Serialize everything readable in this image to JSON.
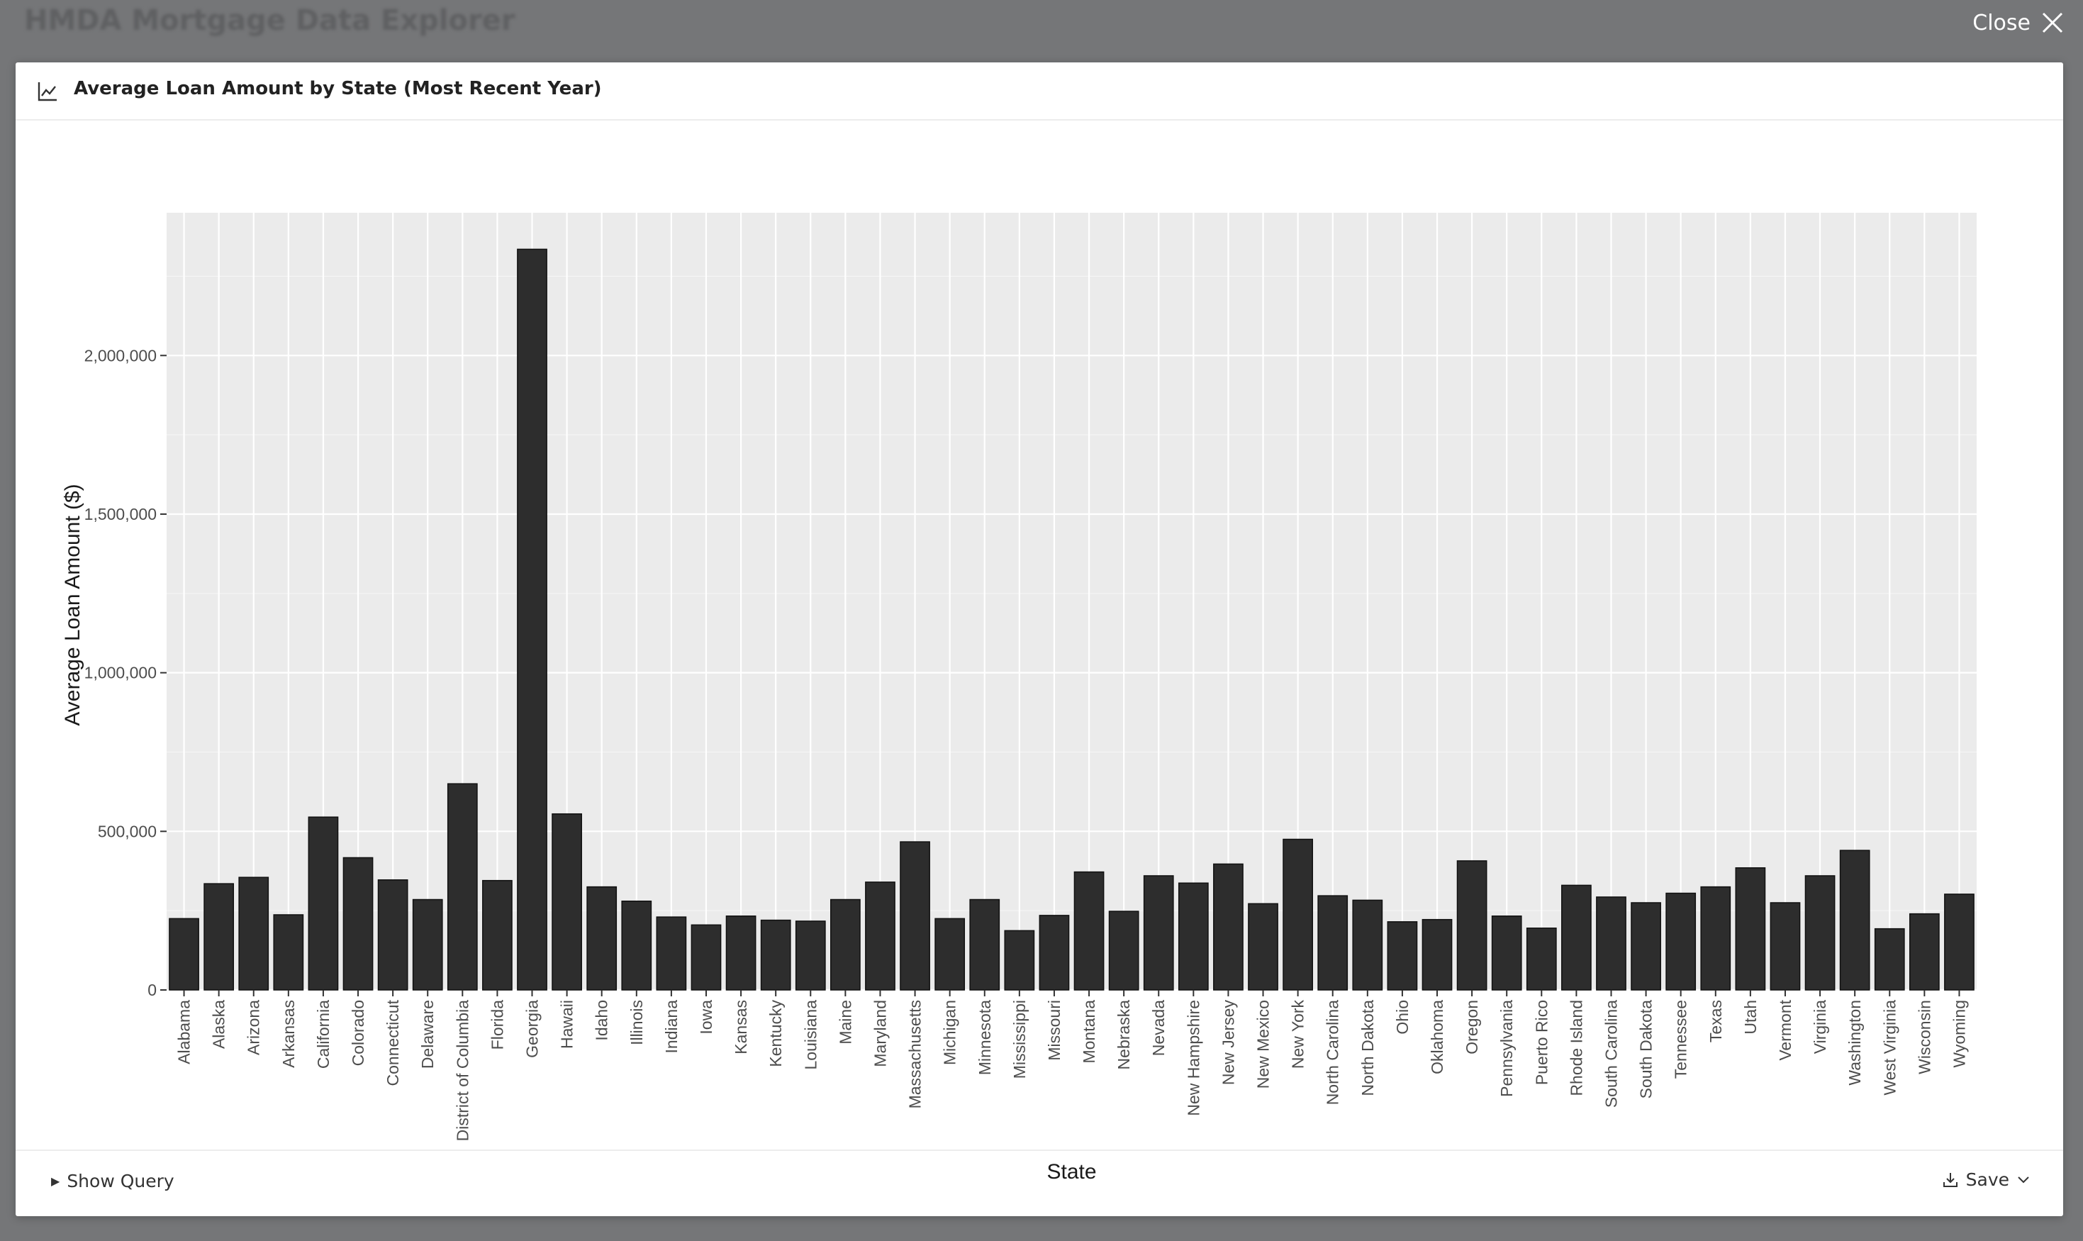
{
  "app": {
    "title": "HMDA Mortgage Data Explorer",
    "close_label": "Close"
  },
  "modal": {
    "title": "Average Loan Amount by State (Most Recent Year)",
    "header_icon": "line-chart-icon",
    "show_query_label": "Show Query",
    "save_label": "Save"
  },
  "colors": {
    "bar_fill": "#2d2d2d",
    "panel_bg": "#ebebeb",
    "grid": "#ffffff",
    "text": "#1a1a1a"
  },
  "chart_data": {
    "type": "bar",
    "title": "",
    "xlabel": "State",
    "ylabel": "Average Loan Amount ($)",
    "ylim": [
      0,
      2450000
    ],
    "yticks": [
      0,
      500000,
      1000000,
      1500000,
      2000000
    ],
    "ytick_labels": [
      "0",
      "500,000",
      "1,000,000",
      "1,500,000",
      "2,000,000"
    ],
    "grid": true,
    "categories": [
      "Alabama",
      "Alaska",
      "Arizona",
      "Arkansas",
      "California",
      "Colorado",
      "Connecticut",
      "Delaware",
      "District of Columbia",
      "Florida",
      "Georgia",
      "Hawaii",
      "Idaho",
      "Illinois",
      "Indiana",
      "Iowa",
      "Kansas",
      "Kentucky",
      "Louisiana",
      "Maine",
      "Maryland",
      "Massachusetts",
      "Michigan",
      "Minnesota",
      "Mississippi",
      "Missouri",
      "Montana",
      "Nebraska",
      "Nevada",
      "New Hampshire",
      "New Jersey",
      "New Mexico",
      "New York",
      "North Carolina",
      "North Dakota",
      "Ohio",
      "Oklahoma",
      "Oregon",
      "Pennsylvania",
      "Puerto Rico",
      "Rhode Island",
      "South Carolina",
      "South Dakota",
      "Tennessee",
      "Texas",
      "Utah",
      "Vermont",
      "Virginia",
      "Washington",
      "West Virginia",
      "Wisconsin",
      "Wyoming"
    ],
    "values": [
      225000,
      335000,
      355000,
      237000,
      545000,
      417000,
      347000,
      285000,
      650000,
      345000,
      2335000,
      555000,
      325000,
      280000,
      230000,
      205000,
      233000,
      220000,
      217000,
      285000,
      340000,
      467000,
      225000,
      285000,
      187000,
      235000,
      372000,
      248000,
      360000,
      337000,
      397000,
      272000,
      475000,
      297000,
      283000,
      215000,
      222000,
      407000,
      233000,
      195000,
      330000,
      293000,
      275000,
      305000,
      325000,
      385000,
      275000,
      360000,
      440000,
      193000,
      240000,
      302000
    ]
  }
}
